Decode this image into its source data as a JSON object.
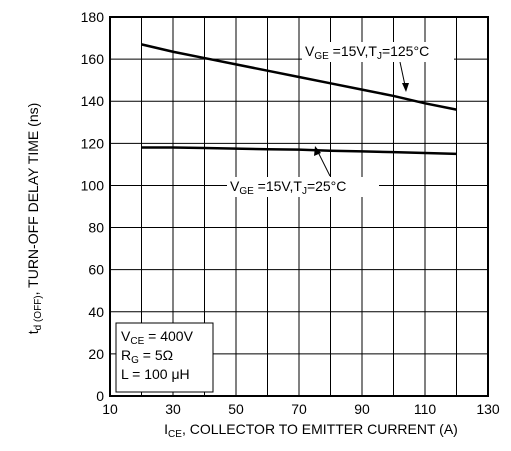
{
  "chart_data": {
    "type": "line",
    "x_label": [
      "I",
      "CE",
      ", COLLECTOR TO EMITTER CURRENT (A)"
    ],
    "y_label": [
      "t",
      "d (OFF)",
      ", TURN-OFF DELAY TIME (ns)"
    ],
    "x": [
      20,
      30,
      40,
      50,
      60,
      70,
      80,
      90,
      100,
      110,
      120
    ],
    "series": [
      {
        "name": [
          "V",
          "GE",
          " =15V,T",
          "J",
          "=125°C"
        ],
        "color": "#000000",
        "values": [
          167,
          163.5,
          160.5,
          157.5,
          154.5,
          151.5,
          148.5,
          145.5,
          142.5,
          139,
          136
        ]
      },
      {
        "name": [
          "V",
          "GE",
          " =15V,T",
          "J",
          "=25°C"
        ],
        "color": "#000000",
        "values": [
          118,
          118,
          117.8,
          117.5,
          117.2,
          117,
          116.5,
          116.2,
          115.8,
          115.4,
          115
        ]
      }
    ],
    "conditions": [
      [
        "V",
        "CE",
        " = 400V"
      ],
      [
        "R",
        "G",
        " = 5Ω"
      ],
      [
        "L = 100 μH"
      ]
    ],
    "xlim": [
      10,
      130
    ],
    "ylim": [
      0,
      180
    ],
    "xticks": [
      10,
      30,
      50,
      70,
      90,
      110,
      130
    ],
    "xgrid": [
      10,
      20,
      30,
      40,
      50,
      60,
      70,
      80,
      90,
      100,
      110,
      120,
      130
    ],
    "yticks": [
      0,
      20,
      40,
      60,
      80,
      100,
      120,
      140,
      160,
      180
    ],
    "grid": true
  }
}
